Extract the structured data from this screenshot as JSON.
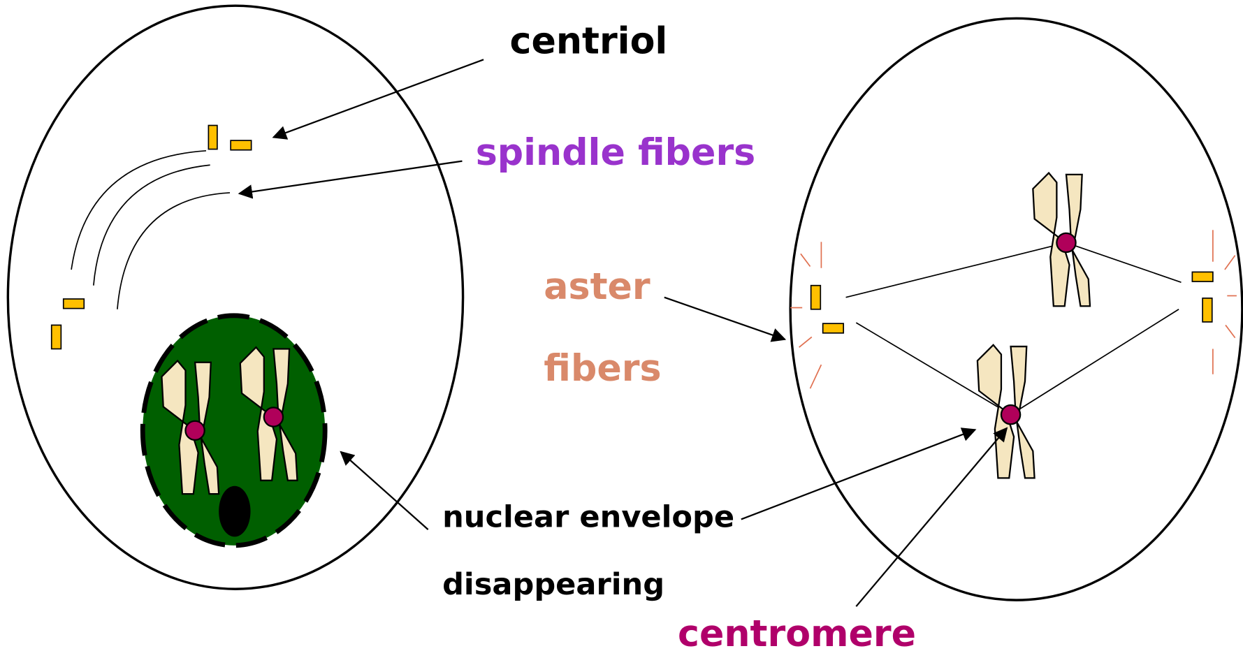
{
  "labels": {
    "centriol": "centriol",
    "spindle_fibers": "spindle fibers",
    "aster": "aster",
    "fibers": "fibers",
    "nuclear_envelope": "nuclear envelope",
    "disappearing": "disappearing",
    "centromere": "centromere"
  }
}
